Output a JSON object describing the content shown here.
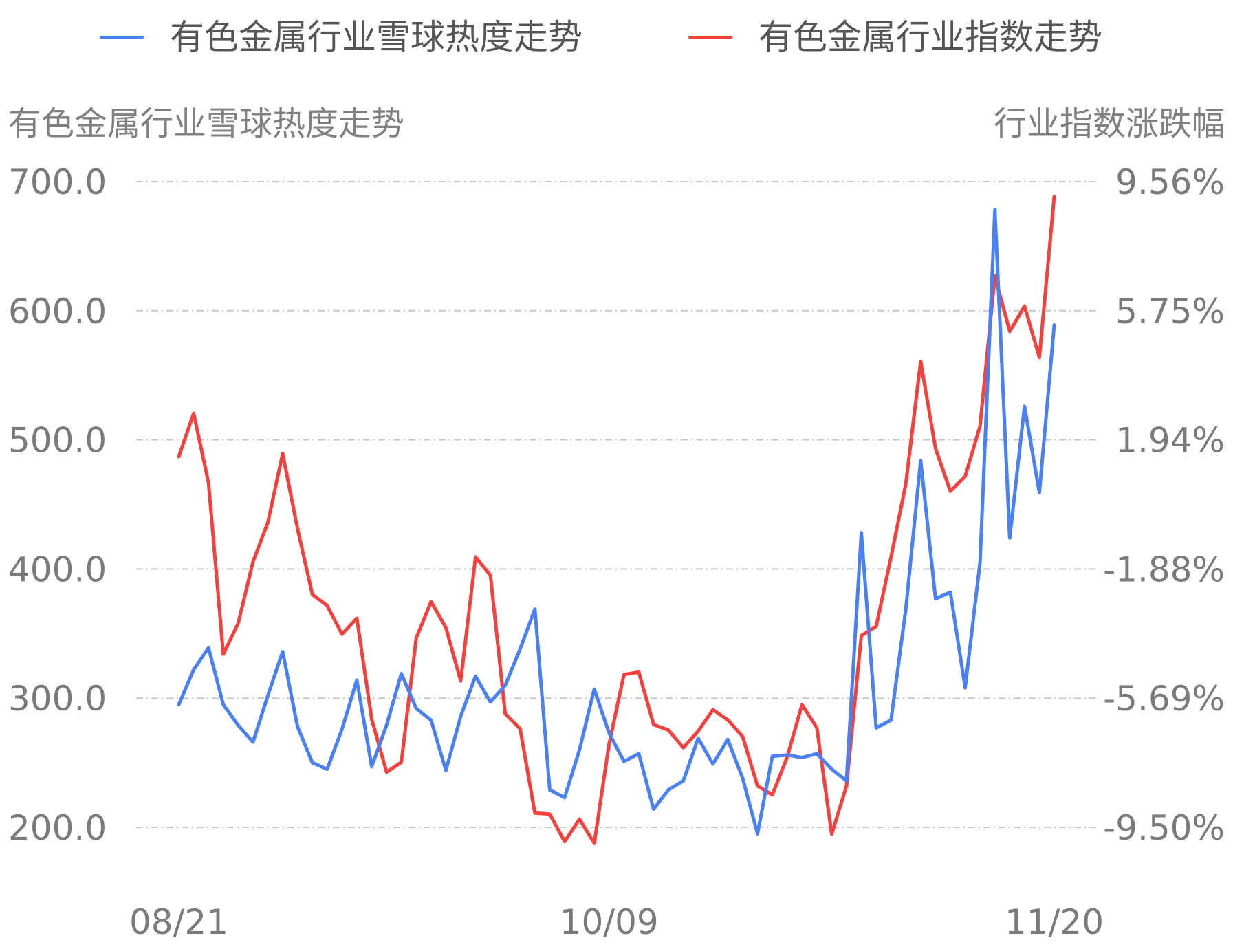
{
  "chart_data": {
    "type": "line",
    "legend": {
      "position": "top"
    },
    "y_left": {
      "title": "有色金属行业雪球热度走势",
      "ylim": [
        200,
        700
      ],
      "ticks": [
        "700.0",
        "600.0",
        "500.0",
        "400.0",
        "300.0",
        "200.0"
      ]
    },
    "y_right": {
      "title": "行业指数涨跌幅",
      "ylim": [
        -9.5,
        9.56
      ],
      "ticks": [
        "9.56%",
        "5.75%",
        "1.94%",
        "-1.88%",
        "-5.69%",
        "-9.50%"
      ]
    },
    "x_ticks": [
      {
        "label": "08/21",
        "index": 0
      },
      {
        "label": "10/09",
        "index": 29
      },
      {
        "label": "11/20",
        "index": 59
      }
    ],
    "grid": true,
    "series": [
      {
        "name": "有色金属行业雪球热度走势",
        "color": "#4a80f5",
        "axis": "left",
        "values": [
          295,
          322,
          339,
          295,
          279,
          266,
          302,
          336,
          278,
          250,
          245,
          276,
          314,
          247,
          279,
          319,
          292,
          283,
          244,
          286,
          317,
          297,
          310,
          338,
          369,
          229,
          223,
          260,
          307,
          273,
          251,
          257,
          214,
          229,
          236,
          269,
          249,
          268,
          238,
          195,
          255,
          256,
          254,
          257,
          245,
          236,
          428,
          277,
          283,
          369,
          484,
          377,
          382,
          308,
          405,
          678,
          424,
          526,
          459,
          589
        ]
      },
      {
        "name": "有色金属行业指数走势",
        "color": "#f5403d",
        "axis": "right",
        "values": [
          1.44,
          2.72,
          0.67,
          -4.39,
          -3.48,
          -1.66,
          -0.5,
          1.53,
          -0.68,
          -2.63,
          -2.96,
          -3.8,
          -3.33,
          -6.31,
          -7.87,
          -7.58,
          -3.92,
          -2.84,
          -3.61,
          -5.18,
          -1.52,
          -2.06,
          -6.15,
          -6.59,
          -9.08,
          -9.11,
          -9.92,
          -9.26,
          -9.97,
          -7.04,
          -4.99,
          -4.92,
          -6.47,
          -6.63,
          -7.15,
          -6.66,
          -6.03,
          -6.33,
          -6.82,
          -8.28,
          -8.54,
          -7.43,
          -5.88,
          -6.56,
          -9.7,
          -8.28,
          -3.84,
          -3.57,
          -1.52,
          0.64,
          4.25,
          1.68,
          0.42,
          0.86,
          2.34,
          6.77,
          5.14,
          5.88,
          4.37,
          9.12
        ]
      }
    ]
  }
}
